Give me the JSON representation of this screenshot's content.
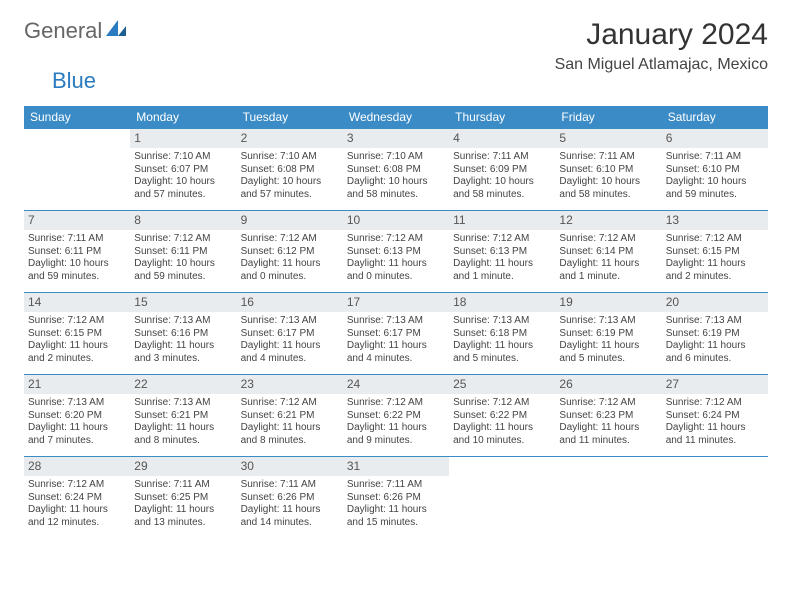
{
  "brand": {
    "word1": "General",
    "word2": "Blue"
  },
  "header": {
    "title": "January 2024",
    "location": "San Miguel Atlamajac, Mexico"
  },
  "calendar": {
    "day_header_bg": "#3b8bc7",
    "day_header_text": "#ffffff",
    "cell_border_color": "#3b8bc7",
    "daynum_bg": "#e9ecef",
    "weekdays": [
      "Sunday",
      "Monday",
      "Tuesday",
      "Wednesday",
      "Thursday",
      "Friday",
      "Saturday"
    ],
    "weeks": [
      [
        {
          "n": "",
          "sunrise": "",
          "sunset": "",
          "daylight1": "",
          "daylight2": ""
        },
        {
          "n": "1",
          "sunrise": "Sunrise: 7:10 AM",
          "sunset": "Sunset: 6:07 PM",
          "daylight1": "Daylight: 10 hours",
          "daylight2": "and 57 minutes."
        },
        {
          "n": "2",
          "sunrise": "Sunrise: 7:10 AM",
          "sunset": "Sunset: 6:08 PM",
          "daylight1": "Daylight: 10 hours",
          "daylight2": "and 57 minutes."
        },
        {
          "n": "3",
          "sunrise": "Sunrise: 7:10 AM",
          "sunset": "Sunset: 6:08 PM",
          "daylight1": "Daylight: 10 hours",
          "daylight2": "and 58 minutes."
        },
        {
          "n": "4",
          "sunrise": "Sunrise: 7:11 AM",
          "sunset": "Sunset: 6:09 PM",
          "daylight1": "Daylight: 10 hours",
          "daylight2": "and 58 minutes."
        },
        {
          "n": "5",
          "sunrise": "Sunrise: 7:11 AM",
          "sunset": "Sunset: 6:10 PM",
          "daylight1": "Daylight: 10 hours",
          "daylight2": "and 58 minutes."
        },
        {
          "n": "6",
          "sunrise": "Sunrise: 7:11 AM",
          "sunset": "Sunset: 6:10 PM",
          "daylight1": "Daylight: 10 hours",
          "daylight2": "and 59 minutes."
        }
      ],
      [
        {
          "n": "7",
          "sunrise": "Sunrise: 7:11 AM",
          "sunset": "Sunset: 6:11 PM",
          "daylight1": "Daylight: 10 hours",
          "daylight2": "and 59 minutes."
        },
        {
          "n": "8",
          "sunrise": "Sunrise: 7:12 AM",
          "sunset": "Sunset: 6:11 PM",
          "daylight1": "Daylight: 10 hours",
          "daylight2": "and 59 minutes."
        },
        {
          "n": "9",
          "sunrise": "Sunrise: 7:12 AM",
          "sunset": "Sunset: 6:12 PM",
          "daylight1": "Daylight: 11 hours",
          "daylight2": "and 0 minutes."
        },
        {
          "n": "10",
          "sunrise": "Sunrise: 7:12 AM",
          "sunset": "Sunset: 6:13 PM",
          "daylight1": "Daylight: 11 hours",
          "daylight2": "and 0 minutes."
        },
        {
          "n": "11",
          "sunrise": "Sunrise: 7:12 AM",
          "sunset": "Sunset: 6:13 PM",
          "daylight1": "Daylight: 11 hours",
          "daylight2": "and 1 minute."
        },
        {
          "n": "12",
          "sunrise": "Sunrise: 7:12 AM",
          "sunset": "Sunset: 6:14 PM",
          "daylight1": "Daylight: 11 hours",
          "daylight2": "and 1 minute."
        },
        {
          "n": "13",
          "sunrise": "Sunrise: 7:12 AM",
          "sunset": "Sunset: 6:15 PM",
          "daylight1": "Daylight: 11 hours",
          "daylight2": "and 2 minutes."
        }
      ],
      [
        {
          "n": "14",
          "sunrise": "Sunrise: 7:12 AM",
          "sunset": "Sunset: 6:15 PM",
          "daylight1": "Daylight: 11 hours",
          "daylight2": "and 2 minutes."
        },
        {
          "n": "15",
          "sunrise": "Sunrise: 7:13 AM",
          "sunset": "Sunset: 6:16 PM",
          "daylight1": "Daylight: 11 hours",
          "daylight2": "and 3 minutes."
        },
        {
          "n": "16",
          "sunrise": "Sunrise: 7:13 AM",
          "sunset": "Sunset: 6:17 PM",
          "daylight1": "Daylight: 11 hours",
          "daylight2": "and 4 minutes."
        },
        {
          "n": "17",
          "sunrise": "Sunrise: 7:13 AM",
          "sunset": "Sunset: 6:17 PM",
          "daylight1": "Daylight: 11 hours",
          "daylight2": "and 4 minutes."
        },
        {
          "n": "18",
          "sunrise": "Sunrise: 7:13 AM",
          "sunset": "Sunset: 6:18 PM",
          "daylight1": "Daylight: 11 hours",
          "daylight2": "and 5 minutes."
        },
        {
          "n": "19",
          "sunrise": "Sunrise: 7:13 AM",
          "sunset": "Sunset: 6:19 PM",
          "daylight1": "Daylight: 11 hours",
          "daylight2": "and 5 minutes."
        },
        {
          "n": "20",
          "sunrise": "Sunrise: 7:13 AM",
          "sunset": "Sunset: 6:19 PM",
          "daylight1": "Daylight: 11 hours",
          "daylight2": "and 6 minutes."
        }
      ],
      [
        {
          "n": "21",
          "sunrise": "Sunrise: 7:13 AM",
          "sunset": "Sunset: 6:20 PM",
          "daylight1": "Daylight: 11 hours",
          "daylight2": "and 7 minutes."
        },
        {
          "n": "22",
          "sunrise": "Sunrise: 7:13 AM",
          "sunset": "Sunset: 6:21 PM",
          "daylight1": "Daylight: 11 hours",
          "daylight2": "and 8 minutes."
        },
        {
          "n": "23",
          "sunrise": "Sunrise: 7:12 AM",
          "sunset": "Sunset: 6:21 PM",
          "daylight1": "Daylight: 11 hours",
          "daylight2": "and 8 minutes."
        },
        {
          "n": "24",
          "sunrise": "Sunrise: 7:12 AM",
          "sunset": "Sunset: 6:22 PM",
          "daylight1": "Daylight: 11 hours",
          "daylight2": "and 9 minutes."
        },
        {
          "n": "25",
          "sunrise": "Sunrise: 7:12 AM",
          "sunset": "Sunset: 6:22 PM",
          "daylight1": "Daylight: 11 hours",
          "daylight2": "and 10 minutes."
        },
        {
          "n": "26",
          "sunrise": "Sunrise: 7:12 AM",
          "sunset": "Sunset: 6:23 PM",
          "daylight1": "Daylight: 11 hours",
          "daylight2": "and 11 minutes."
        },
        {
          "n": "27",
          "sunrise": "Sunrise: 7:12 AM",
          "sunset": "Sunset: 6:24 PM",
          "daylight1": "Daylight: 11 hours",
          "daylight2": "and 11 minutes."
        }
      ],
      [
        {
          "n": "28",
          "sunrise": "Sunrise: 7:12 AM",
          "sunset": "Sunset: 6:24 PM",
          "daylight1": "Daylight: 11 hours",
          "daylight2": "and 12 minutes."
        },
        {
          "n": "29",
          "sunrise": "Sunrise: 7:11 AM",
          "sunset": "Sunset: 6:25 PM",
          "daylight1": "Daylight: 11 hours",
          "daylight2": "and 13 minutes."
        },
        {
          "n": "30",
          "sunrise": "Sunrise: 7:11 AM",
          "sunset": "Sunset: 6:26 PM",
          "daylight1": "Daylight: 11 hours",
          "daylight2": "and 14 minutes."
        },
        {
          "n": "31",
          "sunrise": "Sunrise: 7:11 AM",
          "sunset": "Sunset: 6:26 PM",
          "daylight1": "Daylight: 11 hours",
          "daylight2": "and 15 minutes."
        },
        {
          "n": "",
          "sunrise": "",
          "sunset": "",
          "daylight1": "",
          "daylight2": ""
        },
        {
          "n": "",
          "sunrise": "",
          "sunset": "",
          "daylight1": "",
          "daylight2": ""
        },
        {
          "n": "",
          "sunrise": "",
          "sunset": "",
          "daylight1": "",
          "daylight2": ""
        }
      ]
    ]
  }
}
